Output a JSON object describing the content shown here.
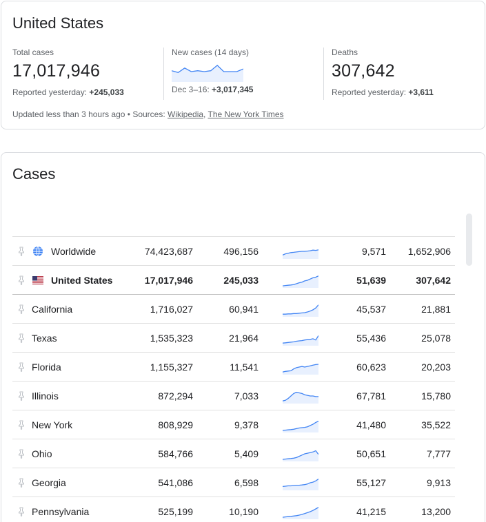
{
  "summary": {
    "title": "United States",
    "total": {
      "label": "Total cases",
      "value": "17,017,946",
      "sub_prefix": "Reported yesterday:",
      "sub_value": "+245,033"
    },
    "new": {
      "label": "New cases (14 days)",
      "sub_prefix": "Dec 3–16:",
      "sub_value": "+3,017,345",
      "trend": [
        0.55,
        0.45,
        0.7,
        0.5,
        0.55,
        0.5,
        0.55,
        0.85,
        0.5,
        0.5,
        0.5,
        0.65
      ]
    },
    "deaths": {
      "label": "Deaths",
      "value": "307,642",
      "sub_prefix": "Reported yesterday:",
      "sub_value": "+3,611"
    },
    "updated_text": "Updated less than 3 hours ago • Sources: ",
    "source1": "Wikipedia",
    "source_sep": ", ",
    "source2": "The New York Times"
  },
  "cases": {
    "title": "Cases",
    "rows": [
      {
        "name": "Worldwide",
        "icon": "globe-icon",
        "total": "74,423,687",
        "new": "496,156",
        "per_million": "9,571",
        "deaths": "1,652,906",
        "trend": [
          0.2,
          0.3,
          0.35,
          0.4,
          0.42,
          0.45,
          0.48,
          0.5,
          0.5,
          0.52,
          0.55,
          0.6,
          0.58,
          0.62
        ]
      },
      {
        "name": "United States",
        "icon": "us-flag-icon",
        "bold": true,
        "total": "17,017,946",
        "new": "245,033",
        "per_million": "51,639",
        "deaths": "307,642",
        "trend": [
          0.05,
          0.08,
          0.1,
          0.12,
          0.15,
          0.22,
          0.3,
          0.35,
          0.45,
          0.5,
          0.6,
          0.7,
          0.75,
          0.85
        ]
      },
      {
        "name": "California",
        "total": "1,716,027",
        "new": "60,941",
        "per_million": "45,537",
        "deaths": "21,881",
        "trend": [
          0.1,
          0.1,
          0.12,
          0.12,
          0.15,
          0.15,
          0.18,
          0.2,
          0.22,
          0.28,
          0.35,
          0.45,
          0.6,
          0.85
        ]
      },
      {
        "name": "Texas",
        "total": "1,535,323",
        "new": "21,964",
        "per_million": "55,436",
        "deaths": "25,078",
        "trend": [
          0.1,
          0.12,
          0.15,
          0.18,
          0.2,
          0.25,
          0.28,
          0.3,
          0.35,
          0.38,
          0.4,
          0.45,
          0.35,
          0.7
        ]
      },
      {
        "name": "Florida",
        "total": "1,155,327",
        "new": "11,541",
        "per_million": "60,623",
        "deaths": "20,203",
        "trend": [
          0.1,
          0.15,
          0.18,
          0.2,
          0.35,
          0.45,
          0.5,
          0.55,
          0.5,
          0.55,
          0.6,
          0.65,
          0.7,
          0.72
        ]
      },
      {
        "name": "Illinois",
        "total": "872,294",
        "new": "7,033",
        "per_million": "67,781",
        "deaths": "15,780",
        "trend": [
          0.1,
          0.15,
          0.3,
          0.5,
          0.7,
          0.8,
          0.75,
          0.7,
          0.6,
          0.55,
          0.5,
          0.5,
          0.45,
          0.45
        ]
      },
      {
        "name": "New York",
        "total": "808,929",
        "new": "9,378",
        "per_million": "41,480",
        "deaths": "35,522",
        "trend": [
          0.05,
          0.08,
          0.1,
          0.12,
          0.15,
          0.2,
          0.25,
          0.28,
          0.3,
          0.35,
          0.45,
          0.55,
          0.7,
          0.8
        ]
      },
      {
        "name": "Ohio",
        "total": "584,766",
        "new": "5,409",
        "per_million": "50,651",
        "deaths": "7,777",
        "trend": [
          0.05,
          0.08,
          0.1,
          0.12,
          0.15,
          0.2,
          0.3,
          0.4,
          0.5,
          0.55,
          0.6,
          0.65,
          0.75,
          0.45
        ]
      },
      {
        "name": "Georgia",
        "total": "541,086",
        "new": "6,598",
        "per_million": "55,127",
        "deaths": "9,913",
        "trend": [
          0.2,
          0.22,
          0.25,
          0.25,
          0.28,
          0.3,
          0.3,
          0.32,
          0.35,
          0.4,
          0.5,
          0.55,
          0.65,
          0.8
        ]
      },
      {
        "name": "Pennsylvania",
        "total": "525,199",
        "new": "10,190",
        "per_million": "41,215",
        "deaths": "13,200",
        "trend": [
          0.05,
          0.08,
          0.1,
          0.12,
          0.15,
          0.18,
          0.22,
          0.28,
          0.35,
          0.42,
          0.5,
          0.6,
          0.72,
          0.85
        ]
      }
    ]
  },
  "colors": {
    "line": "#4285f4",
    "fill": "#e8f0fe",
    "muted": "#5f6368"
  }
}
